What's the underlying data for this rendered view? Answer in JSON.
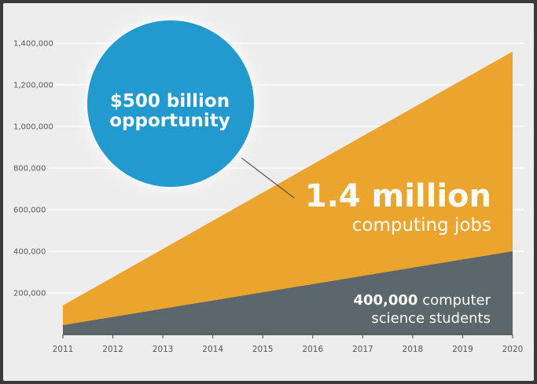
{
  "chart_data": {
    "type": "area",
    "x": [
      2011,
      2012,
      2013,
      2014,
      2015,
      2016,
      2017,
      2018,
      2019,
      2020
    ],
    "ylim": [
      0,
      1400000
    ],
    "yticks": [
      "1,400,000",
      "1,200,000",
      "1,000,000",
      "800,000",
      "600,000",
      "400,000",
      "200,000"
    ],
    "ytick_values": [
      1400000,
      1200000,
      1000000,
      800000,
      600000,
      400000,
      200000
    ],
    "xticks": [
      "2011",
      "2012",
      "2013",
      "2014",
      "2015",
      "2016",
      "2017",
      "2018",
      "2019",
      "2020"
    ],
    "series": [
      {
        "name": "computing jobs",
        "start": [
          2011,
          140000
        ],
        "end": [
          2020,
          1360000
        ],
        "color": "#EBA52F"
      },
      {
        "name": "computer science students",
        "start": [
          2011,
          45000
        ],
        "end": [
          2020,
          400000
        ],
        "color": "#5C676B"
      }
    ],
    "grid": true,
    "annotations": {
      "bubble": {
        "line1": "$500 billion",
        "line2": "opportunity",
        "color": "#2299CF"
      },
      "jobs": {
        "number": "1.4 million",
        "label": "computing jobs"
      },
      "students": {
        "number": "400,000",
        "label_part1": "computer",
        "label_part2": "science students"
      }
    }
  },
  "colors": {
    "background": "#EDEDEE",
    "frame": "#3A3A3A",
    "grid": "#FFFFFF",
    "baseline": "#4A4A4A",
    "connector": "#555555"
  }
}
